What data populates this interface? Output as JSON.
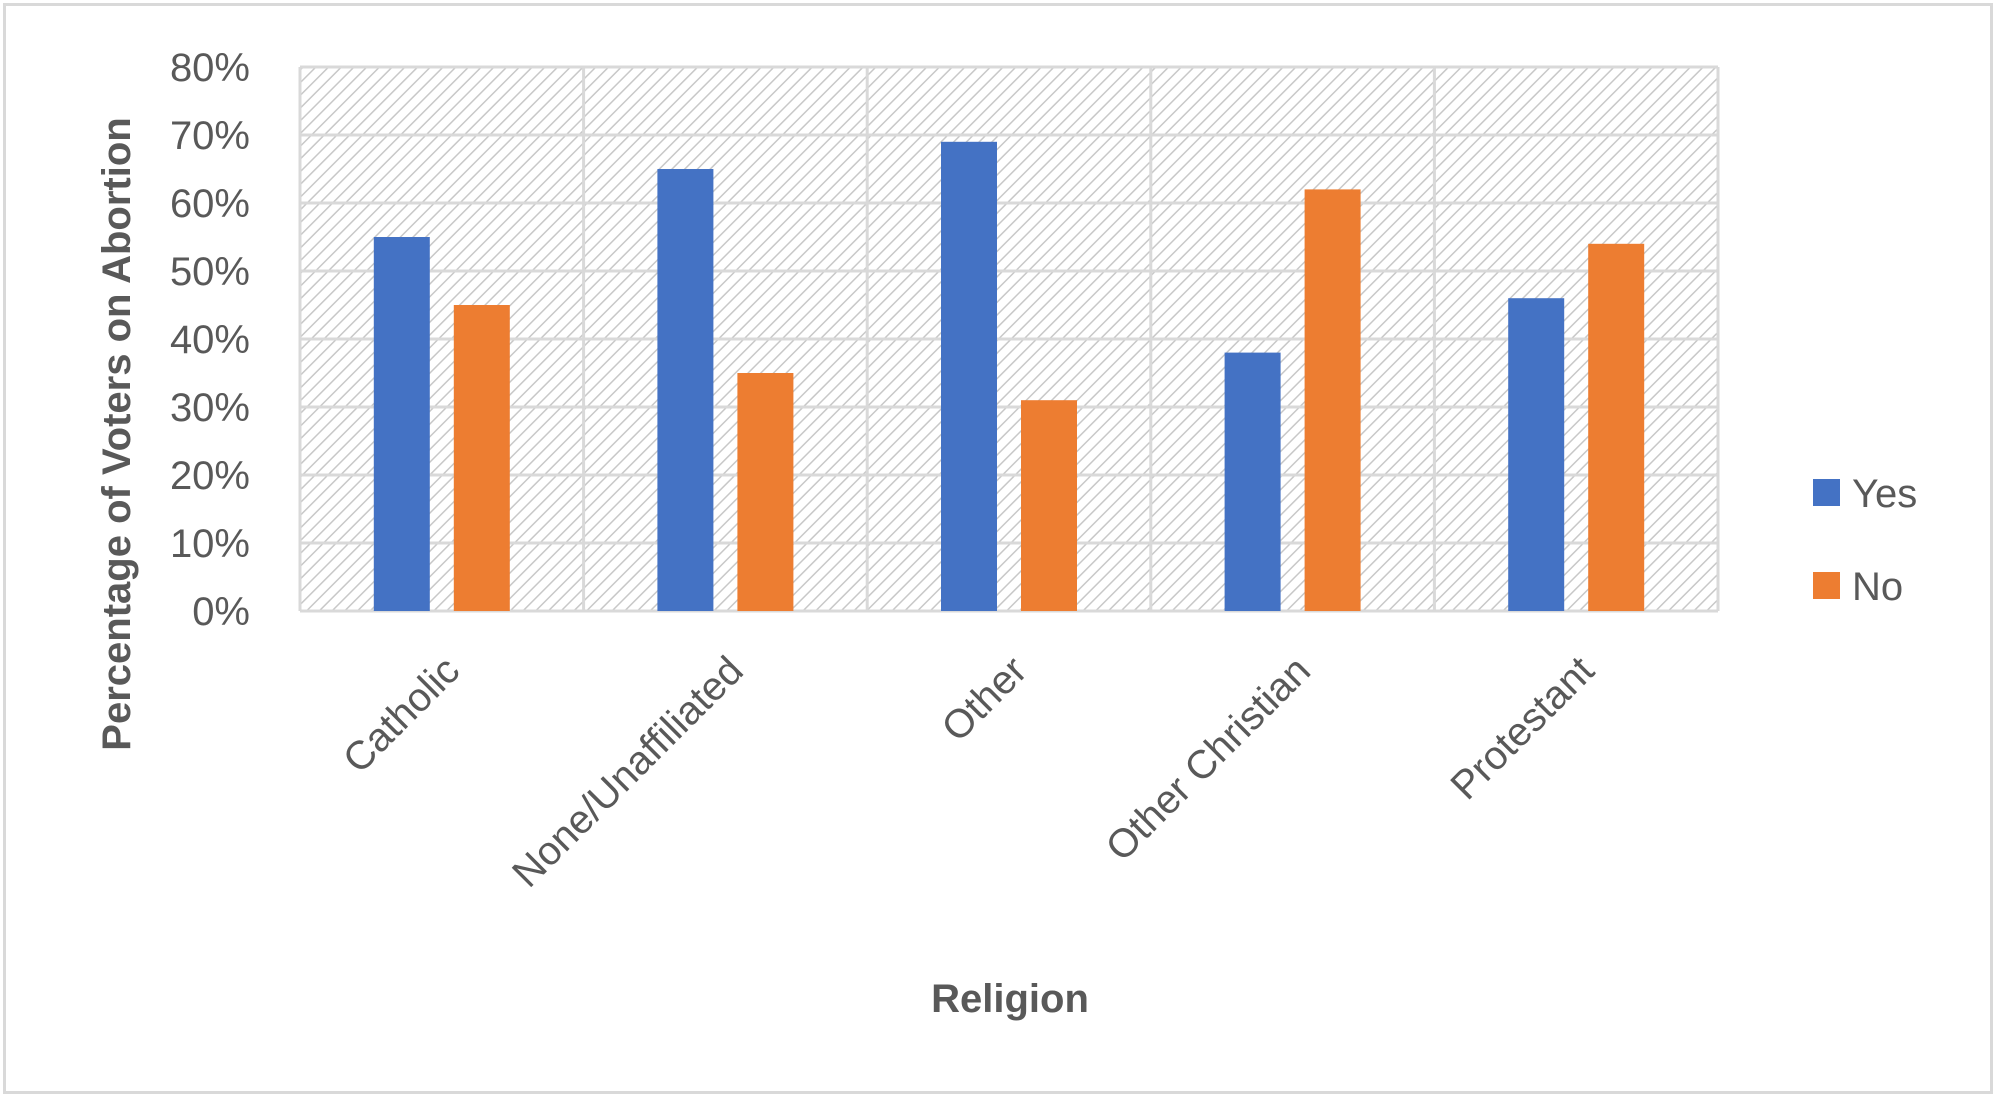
{
  "chart_data": {
    "type": "bar",
    "title": "",
    "xlabel": "Religion",
    "ylabel": "Percentage of Voters on Abortion",
    "categories": [
      "Catholic",
      "None/Unaffiliated",
      "Other",
      "Other Christian",
      "Protestant"
    ],
    "series": [
      {
        "name": "Yes",
        "color": "#4472C4",
        "values": [
          0.55,
          0.65,
          0.69,
          0.38,
          0.46
        ]
      },
      {
        "name": "No",
        "color": "#ED7D31",
        "values": [
          0.45,
          0.35,
          0.31,
          0.62,
          0.54
        ]
      }
    ],
    "ylim": [
      0,
      0.8
    ],
    "yticks": [
      0,
      0.1,
      0.2,
      0.3,
      0.4,
      0.5,
      0.6,
      0.7,
      0.8
    ],
    "ytick_labels": [
      "0%",
      "10%",
      "20%",
      "30%",
      "40%",
      "50%",
      "60%",
      "70%",
      "80%"
    ],
    "grid": true,
    "plot_background": "diagonal-hatch",
    "legend_position": "right"
  }
}
